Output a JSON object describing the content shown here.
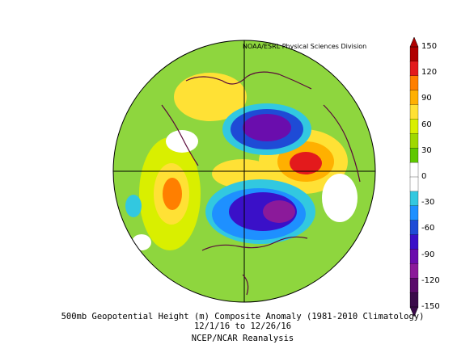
{
  "credit": "NOAA/ESRL Physical Sciences Division",
  "caption": {
    "line1": "500mb Geopotential Height (m) Composite Anomaly (1981-2010 Climatology)",
    "line2": "12/1/16 to 12/26/16",
    "line3": "NCEP/NCAR Reanalysis"
  },
  "colorbar": {
    "ticks": [
      "150",
      "120",
      "90",
      "60",
      "30",
      "0",
      "-30",
      "-60",
      "-90",
      "-120",
      "-150"
    ],
    "colors": [
      "#b00000",
      "#e31a1c",
      "#ff7f00",
      "#ffb000",
      "#ffe135",
      "#d9ef00",
      "#9fd800",
      "#5fc800",
      "#ffffff",
      "#ffffff",
      "#32c8e0",
      "#1e90ff",
      "#1e4bd6",
      "#3a10c8",
      "#6a0dad",
      "#8b1a9a",
      "#5a0a6a",
      "#3a0a4a"
    ],
    "min": -150,
    "max": 150
  },
  "colors": {
    "land_outline": "#5a0a3a",
    "grid": "#000000",
    "green_bg": "#7fd13b"
  }
}
